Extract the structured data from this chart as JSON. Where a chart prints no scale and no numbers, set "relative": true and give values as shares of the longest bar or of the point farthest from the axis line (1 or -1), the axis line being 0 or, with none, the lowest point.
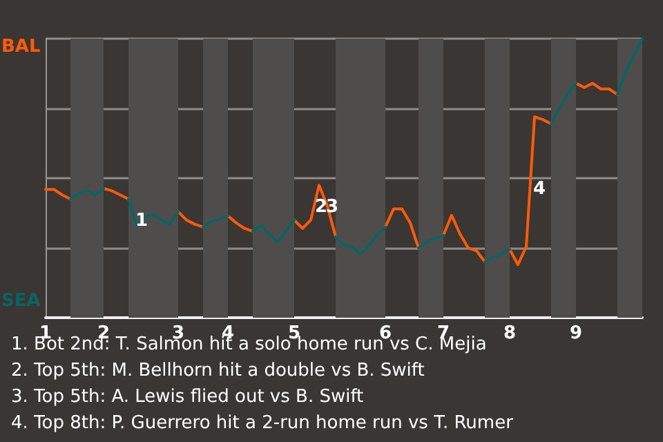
{
  "chart_data": {
    "type": "line",
    "relative": true,
    "grid": "y",
    "marker": "none",
    "line_style": "solid",
    "categories": [
      "1",
      null,
      null,
      null,
      null,
      null,
      null,
      "2",
      null,
      null,
      null,
      null,
      null,
      null,
      null,
      null,
      "3",
      null,
      null,
      null,
      null,
      null,
      "4",
      null,
      null,
      null,
      null,
      null,
      null,
      null,
      "5",
      null,
      null,
      null,
      null,
      null,
      null,
      null,
      null,
      null,
      null,
      "6",
      null,
      null,
      null,
      null,
      null,
      null,
      "7",
      null,
      null,
      null,
      null,
      null,
      null,
      null,
      "8",
      null,
      null,
      null,
      null,
      null,
      null,
      null,
      "9",
      null,
      null,
      null,
      null,
      null,
      null,
      null,
      null
    ],
    "series": [
      {
        "name": "BAL",
        "color": "#ff5a0a",
        "values": [
          0.46,
          0.46,
          0.44,
          0.425,
          null,
          null,
          null,
          0.463,
          0.455,
          0.44,
          0.425,
          null,
          null,
          null,
          null,
          null,
          0.38,
          0.35,
          0.335,
          0.325,
          null,
          null,
          0.365,
          0.34,
          0.32,
          0.31,
          null,
          null,
          null,
          null,
          0.35,
          0.32,
          0.35,
          0.475,
          0.4,
          0.29,
          null,
          null,
          null,
          null,
          null,
          0.325,
          0.39,
          0.39,
          0.34,
          0.25,
          null,
          null,
          0.295,
          0.367,
          0.3,
          0.25,
          0.24,
          0.2,
          null,
          null,
          0.245,
          0.19,
          0.255,
          0.72,
          0.71,
          0.695,
          null,
          null,
          0.84,
          0.825,
          0.84,
          0.82,
          0.82,
          0.8,
          null,
          null,
          null
        ]
      },
      {
        "name": "SEA",
        "color": "#0b6464",
        "values": [
          null,
          null,
          null,
          0.425,
          0.445,
          0.455,
          0.44,
          0.463,
          null,
          null,
          0.425,
          0.33,
          0.36,
          0.37,
          0.35,
          0.335,
          0.38,
          null,
          null,
          0.325,
          0.345,
          0.355,
          0.365,
          null,
          null,
          0.31,
          0.33,
          0.3,
          0.27,
          0.31,
          0.35,
          null,
          null,
          null,
          null,
          0.29,
          0.26,
          0.253,
          0.228,
          0.26,
          0.295,
          0.325,
          null,
          null,
          null,
          0.25,
          0.27,
          0.285,
          0.295,
          null,
          null,
          null,
          null,
          0.2,
          0.215,
          0.23,
          0.245,
          null,
          null,
          null,
          null,
          0.695,
          0.75,
          0.8,
          0.84,
          null,
          null,
          null,
          null,
          0.8,
          0.88,
          0.94,
          1
        ]
      }
    ],
    "annotations": [
      "1",
      "2",
      "3",
      "4",
      "1. Bot 2nd: T. Salmon hit a solo home run vs C. Mejia",
      "2. Top 5th: M. Bellhorn hit a double vs B. Swift",
      "3. Top 5th: A. Lewis flied out vs B. Swift",
      "4. Top 8th: P. Guerrero hit a 2-run home run vs T. Rumer"
    ]
  }
}
